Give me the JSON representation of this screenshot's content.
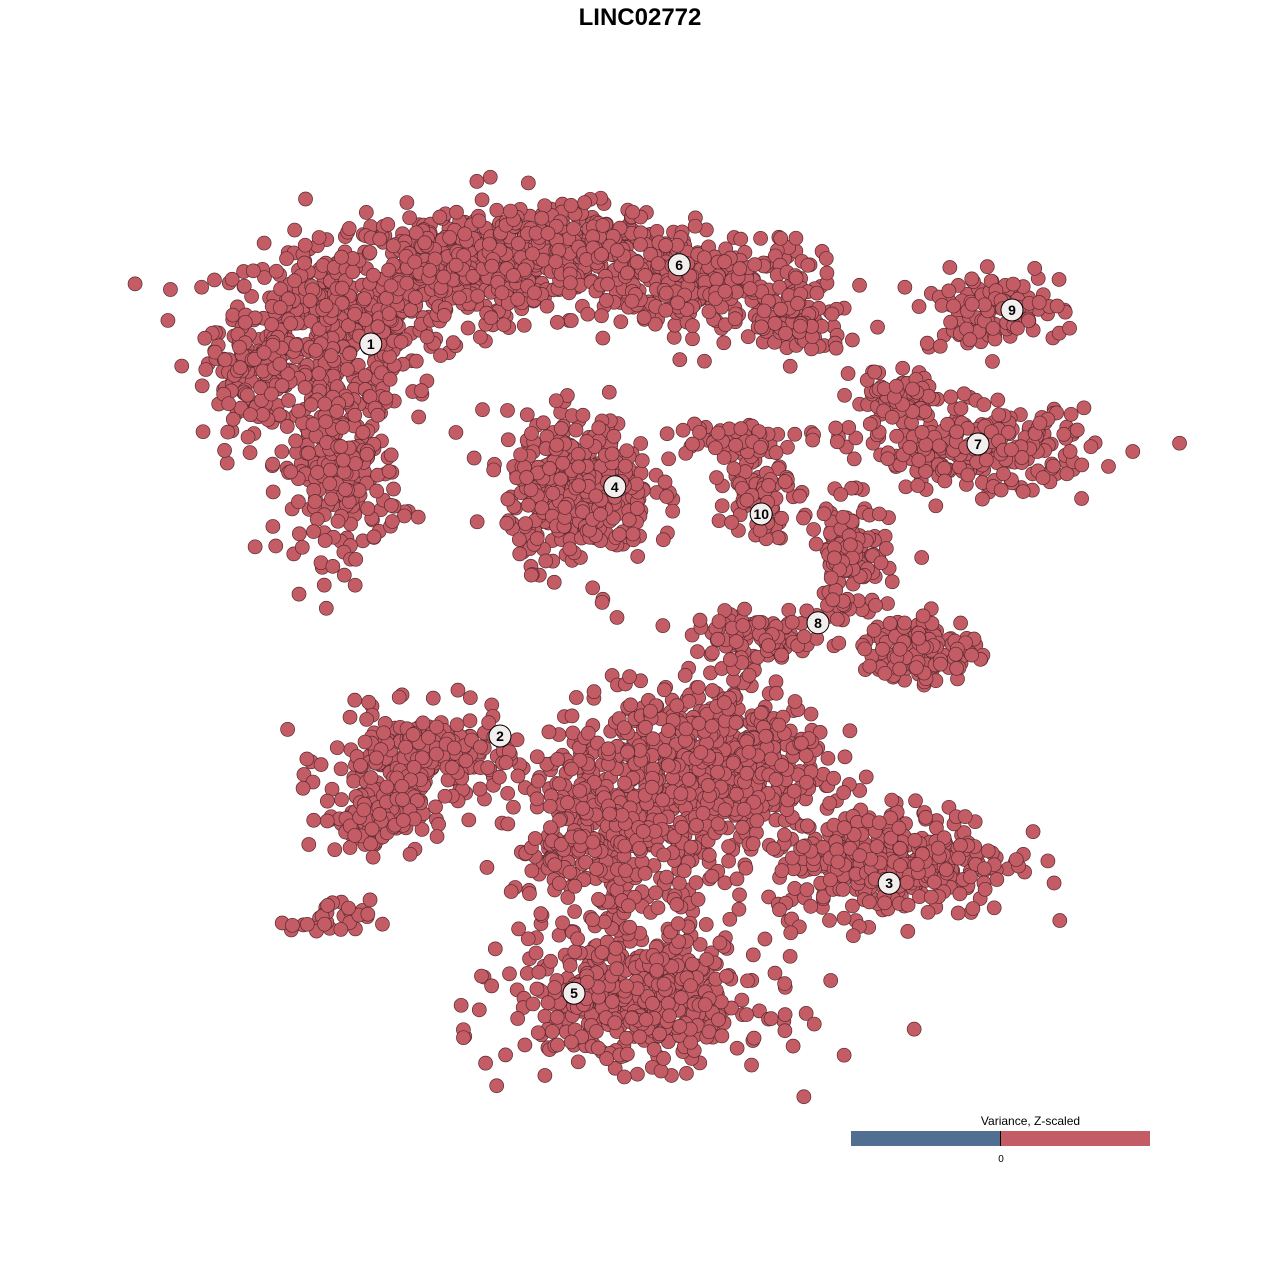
{
  "chart_data": {
    "type": "scatter",
    "title": "LINC02772",
    "xlabel": "",
    "ylabel": "",
    "grid": false,
    "point_color": "#c45c66",
    "point_stroke": "#5a2a2e",
    "note_points": "per-cluster point clouds (center, spread, count) in embedding units",
    "clusters": [
      {
        "label": "1",
        "label_pos": [
          -6.73,
          7.4
        ],
        "blobs": [
          [
            -7.75,
            7.75,
            1.4,
            1.0,
            500
          ],
          [
            -4.75,
            9.25,
            1.25,
            0.75,
            350
          ],
          [
            -7.5,
            4.25,
            0.75,
            1.1,
            250
          ],
          [
            -9.75,
            6.5,
            0.5,
            0.6,
            80
          ]
        ]
      },
      {
        "label": "2",
        "label_pos": [
          -3.5,
          -2.4
        ],
        "blobs": [
          [
            -5.5,
            -3,
            1.1,
            0.6,
            250
          ],
          [
            -6.75,
            -4.5,
            0.6,
            0.4,
            100
          ],
          [
            -7.75,
            -7,
            0.5,
            0.25,
            30
          ]
        ]
      },
      {
        "label": "3",
        "label_pos": [
          6.23,
          -6.08
        ],
        "blobs": [
          [
            6.25,
            -5.5,
            1.5,
            0.7,
            400
          ],
          [
            2,
            -3,
            1.3,
            1.0,
            500
          ]
        ]
      },
      {
        "label": "4",
        "label_pos": [
          -0.63,
          3.83
        ],
        "blobs": [
          [
            -1.5,
            3.75,
            0.9,
            0.9,
            400
          ]
        ]
      },
      {
        "label": "5",
        "label_pos": [
          -1.65,
          -8.83
        ],
        "blobs": [
          [
            0,
            -9,
            1.6,
            0.8,
            500
          ],
          [
            -0.5,
            -4.75,
            1.3,
            1.4,
            500
          ]
        ]
      },
      {
        "label": "6",
        "label_pos": [
          0.98,
          9.38
        ],
        "blobs": [
          [
            -2,
            9.75,
            1.4,
            0.6,
            300
          ],
          [
            1.5,
            9,
            1.5,
            0.6,
            300
          ],
          [
            4,
            8,
            0.6,
            0.5,
            100
          ]
        ]
      },
      {
        "label": "7",
        "label_pos": [
          8.45,
          4.9
        ],
        "blobs": [
          [
            8.5,
            4.75,
            1.4,
            0.5,
            250
          ],
          [
            6.5,
            6,
            0.6,
            0.4,
            80
          ]
        ]
      },
      {
        "label": "8",
        "label_pos": [
          4.45,
          0.43
        ],
        "blobs": [
          [
            5.25,
            2,
            0.5,
            0.75,
            120
          ],
          [
            7,
            -0.25,
            0.7,
            0.4,
            150
          ],
          [
            3,
            0,
            0.8,
            0.3,
            100
          ]
        ]
      },
      {
        "label": "9",
        "label_pos": [
          9.3,
          8.25
        ],
        "blobs": [
          [
            8.75,
            8.25,
            0.9,
            0.45,
            120
          ]
        ]
      },
      {
        "label": "10",
        "label_pos": [
          3.03,
          3.15
        ],
        "blobs": [
          [
            3,
            3.75,
            0.4,
            0.6,
            80
          ],
          [
            2.25,
            5,
            0.8,
            0.25,
            60
          ]
        ]
      }
    ],
    "legend": {
      "title": "Variance, Z-scaled",
      "tick_label": "0",
      "low_color": "#516f91",
      "high_color": "#c45c66",
      "placement": "bottom-right"
    }
  }
}
